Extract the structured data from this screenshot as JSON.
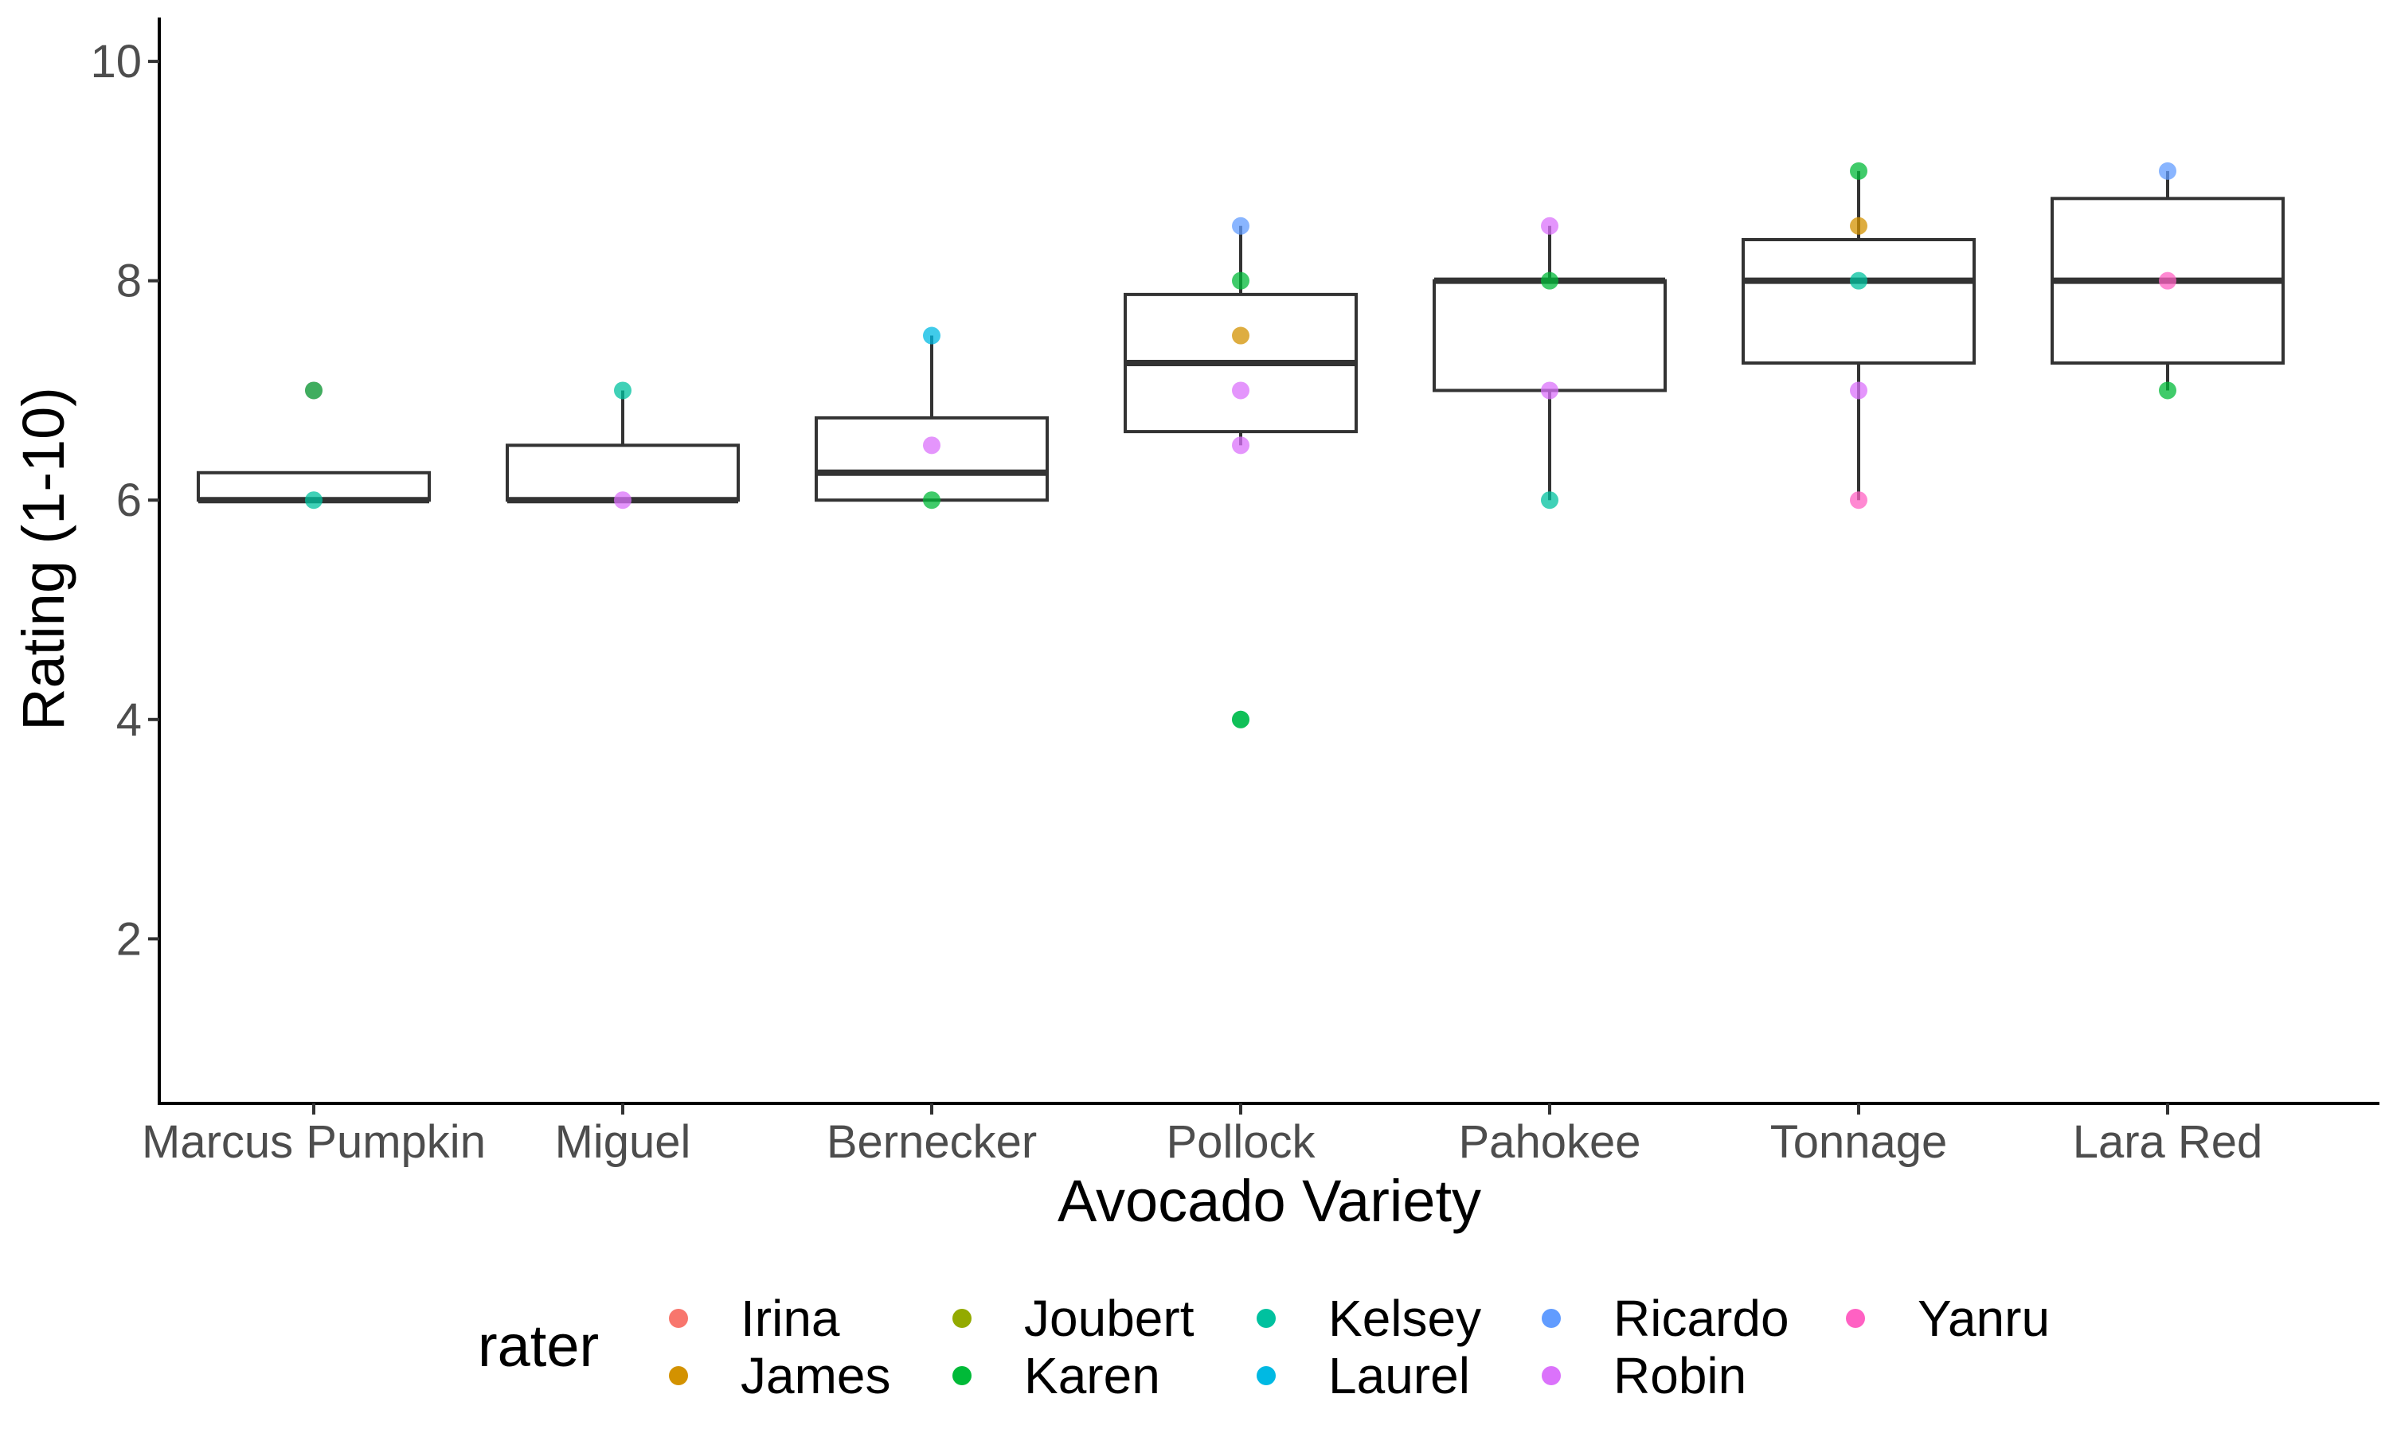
{
  "chart_data": {
    "type": "boxplot",
    "title": "",
    "xlabel": "Avocado Variety",
    "ylabel": "Rating (1-10)",
    "ylim": [
      0.5,
      10.4
    ],
    "yticks": [
      2,
      4,
      6,
      8,
      10
    ],
    "grid": false,
    "legend": {
      "title": "rater",
      "position": "bottom",
      "entries": [
        {
          "name": "Irina",
          "color": "#F8766D"
        },
        {
          "name": "James",
          "color": "#D39200"
        },
        {
          "name": "Joubert",
          "color": "#93AA00"
        },
        {
          "name": "Karen",
          "color": "#00BA38"
        },
        {
          "name": "Kelsey",
          "color": "#00C19F"
        },
        {
          "name": "Laurel",
          "color": "#00B9E3"
        },
        {
          "name": "Ricardo",
          "color": "#619CFF"
        },
        {
          "name": "Robin",
          "color": "#DB72FB"
        },
        {
          "name": "Yanru",
          "color": "#FF61C3"
        }
      ]
    },
    "categories": [
      "Marcus Pumpkin",
      "Miguel",
      "Bernecker",
      "Pollock",
      "Pahokee",
      "Tonnage",
      "Lara Red"
    ],
    "boxes": [
      {
        "category": "Marcus Pumpkin",
        "q1": 6,
        "median": 6,
        "q3": 6.25,
        "whisker_low": 6,
        "whisker_high": 6.25
      },
      {
        "category": "Miguel",
        "q1": 6,
        "median": 6,
        "q3": 6.5,
        "whisker_low": 6,
        "whisker_high": 7
      },
      {
        "category": "Bernecker",
        "q1": 6,
        "median": 6.25,
        "q3": 6.75,
        "whisker_low": 6,
        "whisker_high": 7.5
      },
      {
        "category": "Pollock",
        "q1": 6.625,
        "median": 7.25,
        "q3": 7.875,
        "whisker_low": 6.5,
        "whisker_high": 8.5
      },
      {
        "category": "Pahokee",
        "q1": 7,
        "median": 8,
        "q3": 8,
        "whisker_low": 6,
        "whisker_high": 8.5
      },
      {
        "category": "Tonnage",
        "q1": 7.25,
        "median": 8,
        "q3": 8.375,
        "whisker_low": 6,
        "whisker_high": 9
      },
      {
        "category": "Lara Red",
        "q1": 7.25,
        "median": 8,
        "q3": 8.75,
        "whisker_low": 7,
        "whisker_high": 9
      }
    ],
    "points": [
      {
        "category": "Marcus Pumpkin",
        "rater": "Yanru",
        "value": 7
      },
      {
        "category": "Marcus Pumpkin",
        "rater": "Karen",
        "value": 7
      },
      {
        "category": "Marcus Pumpkin",
        "rater": "Kelsey",
        "value": 6
      },
      {
        "category": "Miguel",
        "rater": "Kelsey",
        "value": 7
      },
      {
        "category": "Miguel",
        "rater": "Robin",
        "value": 6
      },
      {
        "category": "Bernecker",
        "rater": "Laurel",
        "value": 7.5
      },
      {
        "category": "Bernecker",
        "rater": "Robin",
        "value": 6.5
      },
      {
        "category": "Bernecker",
        "rater": "Karen",
        "value": 6
      },
      {
        "category": "Pollock",
        "rater": "Ricardo",
        "value": 8.5
      },
      {
        "category": "Pollock",
        "rater": "Karen",
        "value": 8
      },
      {
        "category": "Pollock",
        "rater": "James",
        "value": 7.5
      },
      {
        "category": "Pollock",
        "rater": "Robin",
        "value": 7
      },
      {
        "category": "Pollock",
        "rater": "Robin",
        "value": 6.5
      },
      {
        "category": "Pollock",
        "rater": "Kelsey",
        "value": 4
      },
      {
        "category": "Pollock",
        "rater": "Karen",
        "value": 4
      },
      {
        "category": "Pahokee",
        "rater": "Robin",
        "value": 8.5
      },
      {
        "category": "Pahokee",
        "rater": "Karen",
        "value": 8
      },
      {
        "category": "Pahokee",
        "rater": "Robin",
        "value": 7
      },
      {
        "category": "Pahokee",
        "rater": "Kelsey",
        "value": 6
      },
      {
        "category": "Tonnage",
        "rater": "Karen",
        "value": 9
      },
      {
        "category": "Tonnage",
        "rater": "James",
        "value": 8.5
      },
      {
        "category": "Tonnage",
        "rater": "Kelsey",
        "value": 8
      },
      {
        "category": "Tonnage",
        "rater": "Robin",
        "value": 7
      },
      {
        "category": "Tonnage",
        "rater": "Yanru",
        "value": 6
      },
      {
        "category": "Lara Red",
        "rater": "Ricardo",
        "value": 9
      },
      {
        "category": "Lara Red",
        "rater": "Yanru",
        "value": 8
      },
      {
        "category": "Lara Red",
        "rater": "Karen",
        "value": 7
      }
    ]
  }
}
